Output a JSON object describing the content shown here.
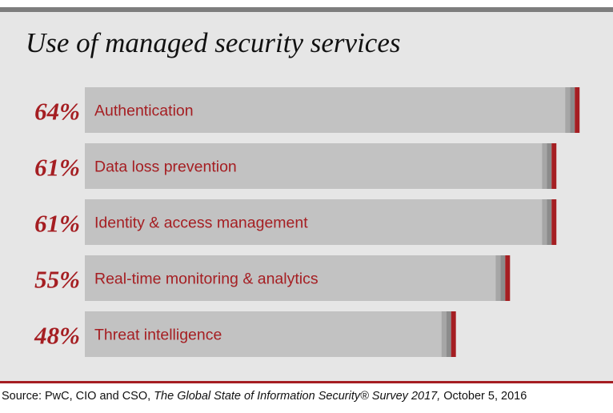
{
  "title": "Use of managed security services",
  "source": {
    "prefix": "Source: PwC, CIO and CSO, ",
    "publication": "The Global State of Information Security® Survey 2017,",
    "date": " October 5, 2016"
  },
  "colors": {
    "accent": "#a51e22",
    "bar": "#c2c2c2",
    "bar_edge_light": "#a6a6a6",
    "bar_edge_dark": "#8c8c8c",
    "panel": "#e6e6e6"
  },
  "chart_data": {
    "type": "bar",
    "orientation": "horizontal",
    "categories": [
      "Authentication",
      "Data loss prevention",
      "Identity & access management",
      "Real-time monitoring & analytics",
      "Threat intelligence"
    ],
    "values": [
      64,
      61,
      61,
      55,
      48
    ],
    "value_labels": [
      "64%",
      "61%",
      "61%",
      "55%",
      "48%"
    ],
    "title": "Use of managed security services",
    "xlabel": "",
    "ylabel": "",
    "unit": "%",
    "legend": "none",
    "grid": false
  }
}
